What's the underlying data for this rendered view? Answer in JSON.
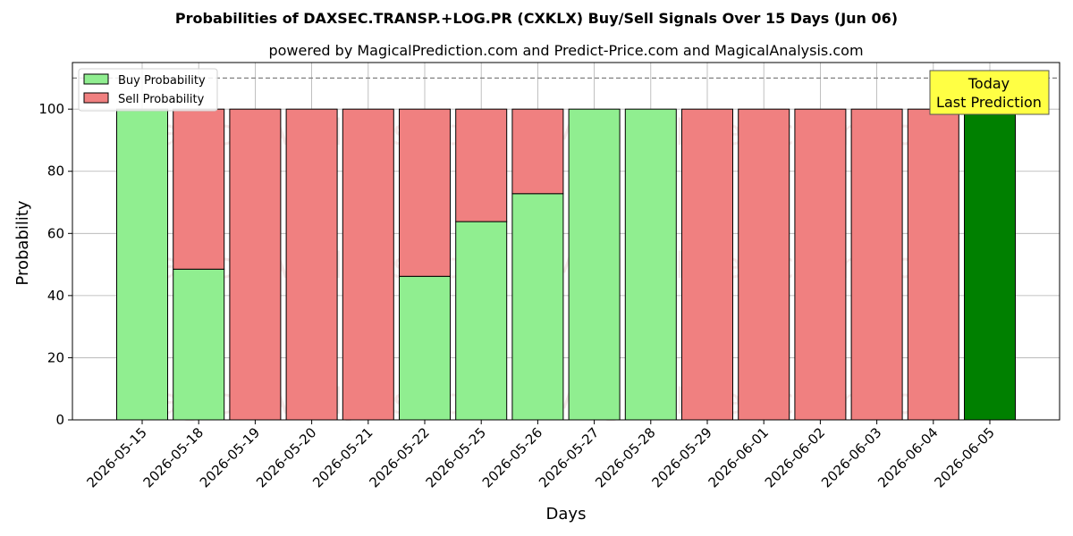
{
  "chart_data": {
    "type": "bar",
    "title": "Probabilities of DAXSEC.TRANSP.+LOG.PR (CXKLX) Buy/Sell Signals Over 15 Days (Jun 06)",
    "subtitle": "powered by MagicalPrediction.com and Predict-Price.com and MagicalAnalysis.com",
    "xlabel": "Days",
    "ylabel": "Probability",
    "ylim": [
      0,
      115
    ],
    "yticks": [
      0,
      20,
      40,
      60,
      80,
      100
    ],
    "reference_line": 110,
    "grid": true,
    "legend_position": "top-left",
    "categories": [
      "2026-05-15",
      "2026-05-18",
      "2026-05-19",
      "2026-05-20",
      "2026-05-21",
      "2026-05-22",
      "2026-05-25",
      "2026-05-26",
      "2026-05-27",
      "2026-05-28",
      "2026-05-29",
      "2026-06-01",
      "2026-06-02",
      "2026-06-03",
      "2026-06-04",
      "2026-06-05"
    ],
    "series": [
      {
        "name": "Buy Probability",
        "color": "#90ee90",
        "values": [
          100,
          48.5,
          0,
          0,
          0,
          46.2,
          63.8,
          72.8,
          100,
          100,
          0,
          0,
          0,
          0,
          0,
          100
        ]
      },
      {
        "name": "Sell Probability",
        "color": "#f08080",
        "values": [
          0,
          51.5,
          100,
          100,
          100,
          53.8,
          36.2,
          27.2,
          0,
          0,
          100,
          100,
          100,
          100,
          100,
          0
        ]
      }
    ],
    "highlight": {
      "index": 15,
      "color": "#008000"
    },
    "annotation": {
      "lines": [
        "Today",
        "Last Prediction"
      ],
      "bg": "#ffff44"
    },
    "watermarks": [
      "MagicalAnalysis.com",
      "MagicalPrediction.com"
    ]
  }
}
